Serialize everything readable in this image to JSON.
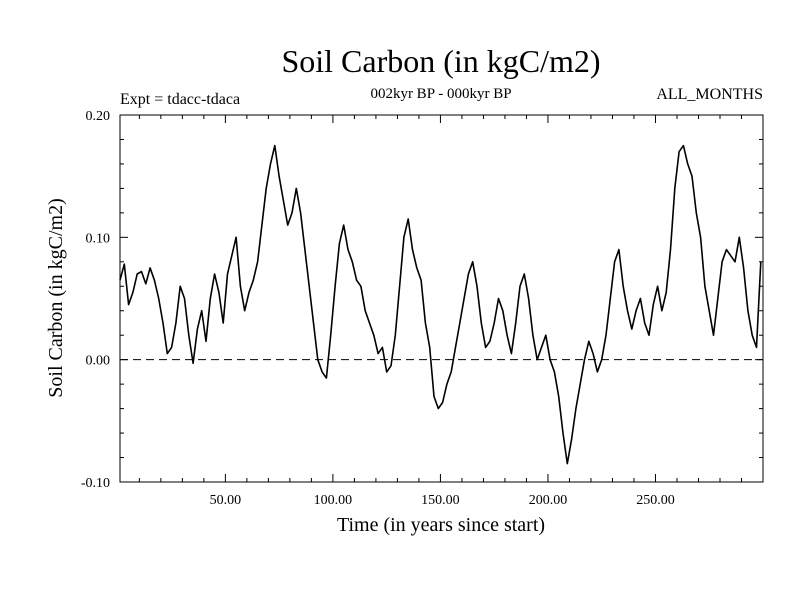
{
  "chart_data": {
    "type": "line",
    "title": "Soil Carbon (in kgC/m2)",
    "subtitle": "002kyr BP - 000kyr BP",
    "experiment_label": "Expt = tdacc-tdaca",
    "period_label": "ALL_MONTHS",
    "xlabel": "Time (in years since start)",
    "ylabel": "Soil Carbon (in kgC/m2)",
    "xlim": [
      1,
      300
    ],
    "ylim": [
      -0.1,
      0.2
    ],
    "x_ticks": [
      50,
      100,
      150,
      200,
      250
    ],
    "x_tick_labels": [
      "50.00",
      "100.00",
      "150.00",
      "200.00",
      "250.00"
    ],
    "y_ticks": [
      -0.1,
      0.0,
      0.1,
      0.2
    ],
    "y_tick_labels": [
      "-0.10",
      "0.00",
      "0.10",
      "0.20"
    ],
    "reference_line": {
      "y": 0.0,
      "style": "dashed"
    },
    "series": [
      {
        "name": "Soil Carbon",
        "x": [
          1,
          3,
          5,
          7,
          9,
          11,
          13,
          15,
          17,
          19,
          21,
          23,
          25,
          27,
          29,
          31,
          33,
          35,
          37,
          39,
          41,
          43,
          45,
          47,
          49,
          51,
          53,
          55,
          57,
          59,
          61,
          63,
          65,
          67,
          69,
          71,
          73,
          75,
          77,
          79,
          81,
          83,
          85,
          87,
          89,
          91,
          93,
          95,
          97,
          99,
          101,
          103,
          105,
          107,
          109,
          111,
          113,
          115,
          117,
          119,
          121,
          123,
          125,
          127,
          129,
          131,
          133,
          135,
          137,
          139,
          141,
          143,
          145,
          147,
          149,
          151,
          153,
          155,
          157,
          159,
          161,
          163,
          165,
          167,
          169,
          171,
          173,
          175,
          177,
          179,
          181,
          183,
          185,
          187,
          189,
          191,
          193,
          195,
          197,
          199,
          201,
          203,
          205,
          207,
          209,
          211,
          213,
          215,
          217,
          219,
          221,
          223,
          225,
          227,
          229,
          231,
          233,
          235,
          237,
          239,
          241,
          243,
          245,
          247,
          249,
          251,
          253,
          255,
          257,
          259,
          261,
          263,
          265,
          267,
          269,
          271,
          273,
          275,
          277,
          279,
          281,
          283,
          285,
          287,
          289,
          291,
          293,
          295,
          297,
          299
        ],
        "values": [
          0.065,
          0.078,
          0.045,
          0.055,
          0.07,
          0.072,
          0.062,
          0.075,
          0.065,
          0.05,
          0.03,
          0.005,
          0.01,
          0.03,
          0.06,
          0.05,
          0.02,
          -0.003,
          0.025,
          0.04,
          0.015,
          0.05,
          0.07,
          0.055,
          0.03,
          0.07,
          0.085,
          0.1,
          0.06,
          0.04,
          0.055,
          0.065,
          0.08,
          0.11,
          0.14,
          0.16,
          0.175,
          0.15,
          0.13,
          0.11,
          0.12,
          0.14,
          0.12,
          0.09,
          0.06,
          0.03,
          0.0,
          -0.01,
          -0.015,
          0.02,
          0.06,
          0.095,
          0.11,
          0.09,
          0.08,
          0.065,
          0.06,
          0.04,
          0.03,
          0.02,
          0.005,
          0.01,
          -0.01,
          -0.005,
          0.02,
          0.06,
          0.1,
          0.115,
          0.09,
          0.075,
          0.065,
          0.03,
          0.01,
          -0.03,
          -0.04,
          -0.035,
          -0.02,
          -0.01,
          0.01,
          0.03,
          0.05,
          0.07,
          0.08,
          0.06,
          0.03,
          0.01,
          0.015,
          0.03,
          0.05,
          0.04,
          0.02,
          0.005,
          0.03,
          0.06,
          0.07,
          0.05,
          0.02,
          0.0,
          0.01,
          0.02,
          0.0,
          -0.01,
          -0.03,
          -0.06,
          -0.085,
          -0.065,
          -0.04,
          -0.02,
          0.0,
          0.015,
          0.005,
          -0.01,
          0.0,
          0.02,
          0.05,
          0.08,
          0.09,
          0.06,
          0.04,
          0.025,
          0.04,
          0.05,
          0.03,
          0.02,
          0.045,
          0.06,
          0.04,
          0.055,
          0.09,
          0.14,
          0.17,
          0.175,
          0.16,
          0.15,
          0.12,
          0.1,
          0.06,
          0.04,
          0.02,
          0.05,
          0.08,
          0.09,
          0.085,
          0.08,
          0.1,
          0.075,
          0.04,
          0.02,
          0.01,
          0.08
        ]
      }
    ]
  }
}
